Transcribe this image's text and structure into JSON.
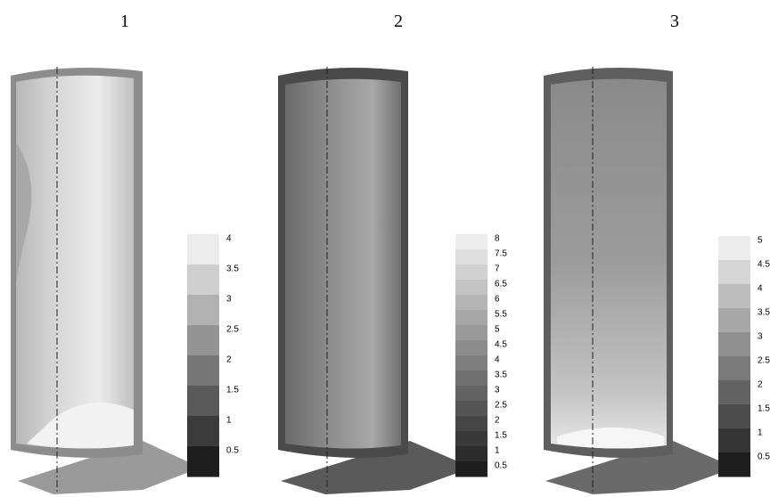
{
  "panels": [
    {
      "label": "1",
      "colorbar": {
        "min": 0,
        "max": 4,
        "ticks": [
          4,
          3.5,
          3,
          2.5,
          2,
          1.5,
          1,
          0.5
        ]
      }
    },
    {
      "label": "2",
      "colorbar": {
        "min": 0,
        "max": 8,
        "ticks": [
          8,
          7.5,
          7,
          6.5,
          6,
          5.5,
          5,
          4.5,
          4,
          3.5,
          3,
          2.5,
          2,
          1.5,
          1,
          0.5
        ]
      }
    },
    {
      "label": "3",
      "colorbar": {
        "min": 0,
        "max": 5,
        "ticks": [
          5,
          4.5,
          4,
          3.5,
          3,
          2.5,
          2,
          1.5,
          1,
          0.5
        ]
      }
    }
  ]
}
